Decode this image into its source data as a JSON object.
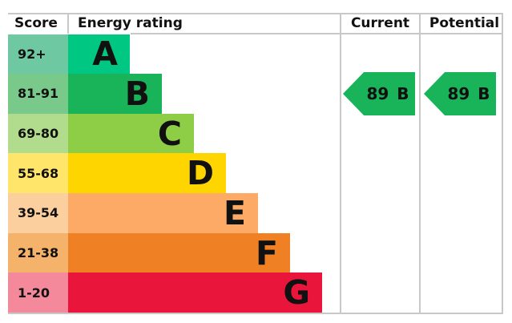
{
  "chart_data": {
    "type": "bar",
    "title": "Energy rating",
    "columns": [
      "Score",
      "Energy rating",
      "Current",
      "Potential"
    ],
    "bands": [
      {
        "score": "92+",
        "rating": "A",
        "bar_color": "#00c781",
        "score_color": "#6ec8a2"
      },
      {
        "score": "81-91",
        "rating": "B",
        "bar_color": "#19b459",
        "score_color": "#79c98b"
      },
      {
        "score": "69-80",
        "rating": "C",
        "bar_color": "#8dce46",
        "score_color": "#b2dc8d"
      },
      {
        "score": "55-68",
        "rating": "D",
        "bar_color": "#ffd500",
        "score_color": "#ffe569"
      },
      {
        "score": "39-54",
        "rating": "E",
        "bar_color": "#fcaa65",
        "score_color": "#fbcf9e"
      },
      {
        "score": "21-38",
        "rating": "F",
        "bar_color": "#ef8023",
        "score_color": "#f5b26a"
      },
      {
        "score": "1-20",
        "rating": "G",
        "bar_color": "#e9153b",
        "score_color": "#f4899c"
      }
    ],
    "current": {
      "value": "89",
      "rating": "B",
      "arrow_color": "#19b459"
    },
    "potential": {
      "value": "89",
      "rating": "B",
      "arrow_color": "#19b459"
    }
  },
  "header": {
    "score": "Score",
    "energy_rating": "Energy rating",
    "current": "Current",
    "potential": "Potential"
  }
}
